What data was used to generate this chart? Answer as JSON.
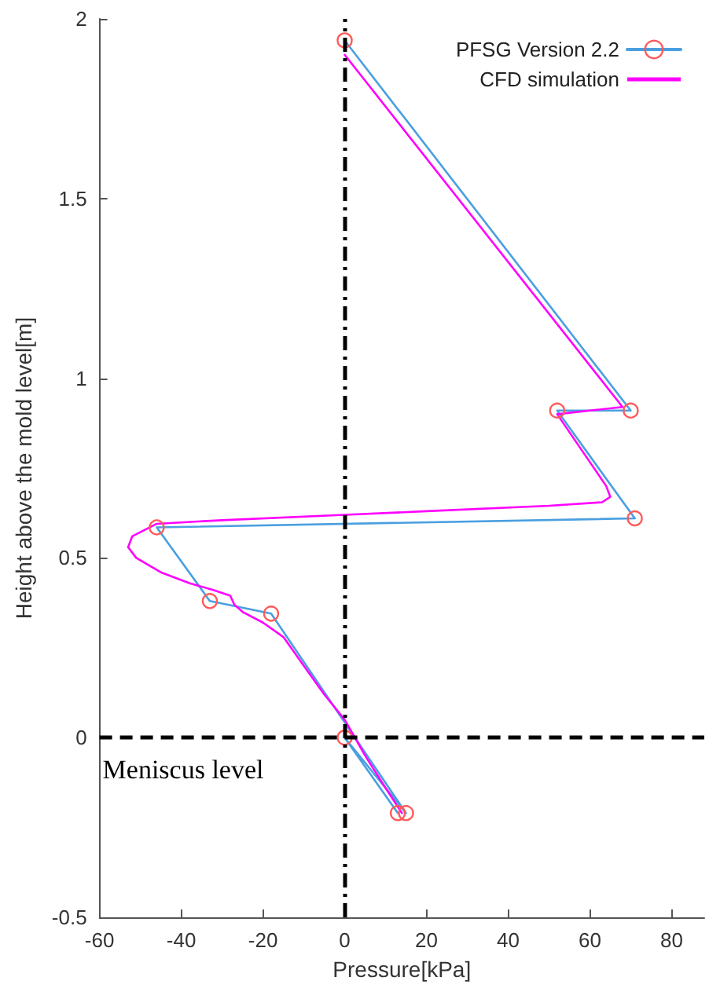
{
  "chart_data": {
    "type": "line",
    "xlabel": "Pressure[kPa]",
    "ylabel": "Height above the mold level[m]",
    "xlim": [
      -60,
      88
    ],
    "xticks": [
      -60,
      -40,
      -20,
      0,
      20,
      40,
      60,
      80
    ],
    "ylim": [
      -0.5,
      2
    ],
    "yticks": [
      -0.5,
      0,
      0.5,
      1,
      1.5,
      2
    ],
    "grid": false,
    "legend": "top right",
    "series": [
      {
        "name": "PFSG Version 2.2",
        "color": "#4a9fe0",
        "marker": "circle",
        "colors": [
          "#ff5a5a",
          "#ff5a5a",
          "#ff5a5a",
          "#ff5a5a",
          "#ff5a5a",
          "#ff5a5a",
          "#ff5a5a",
          "#ff5a5a",
          "#ff5a5a",
          "#ff5a5a"
        ],
        "x": [
          0,
          70,
          52,
          71,
          -46,
          -33,
          -18,
          15,
          0,
          13
        ],
        "values": [
          1.94,
          0.91,
          0.91,
          0.61,
          0.585,
          0.38,
          0.345,
          -0.21,
          0,
          -0.21
        ]
      },
      {
        "name": "CFD simulation",
        "color": "#ff00ff",
        "marker": "none",
        "x": [
          0,
          68,
          52,
          58,
          64,
          65,
          63,
          50,
          20,
          0,
          -30,
          -46,
          -52,
          -53,
          -51,
          -45,
          -38,
          -32,
          -28,
          -27,
          -25,
          -20,
          -15,
          -10,
          -5,
          0,
          5,
          10,
          14
        ],
        "values": [
          1.9,
          0.92,
          0.9,
          0.8,
          0.7,
          0.67,
          0.655,
          0.645,
          0.63,
          0.62,
          0.605,
          0.595,
          0.56,
          0.53,
          0.5,
          0.46,
          0.43,
          0.41,
          0.395,
          0.37,
          0.35,
          0.32,
          0.28,
          0.2,
          0.12,
          0.05,
          -0.05,
          -0.14,
          -0.21
        ]
      }
    ],
    "ref_lines": [
      {
        "axis": "x",
        "value": 0,
        "label": null,
        "color": "#000000",
        "line_style": "dashdot"
      },
      {
        "axis": "y",
        "value": 0,
        "label": "Meniscus level",
        "color": "#000000",
        "line_style": "dashed"
      }
    ]
  }
}
